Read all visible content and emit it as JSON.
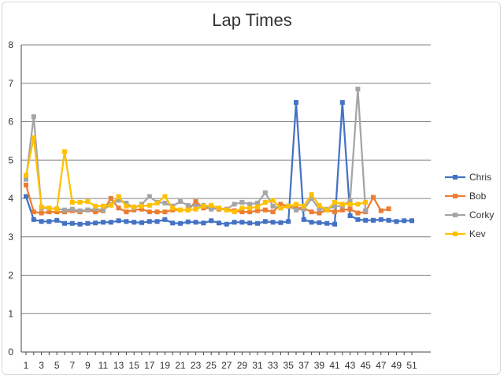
{
  "chart_data": {
    "type": "line",
    "title": "Lap Times",
    "xlabel": "",
    "ylabel": "",
    "ylim": [
      0,
      8
    ],
    "yticks": [
      0,
      1,
      2,
      3,
      4,
      5,
      6,
      7,
      8
    ],
    "xlim": [
      1,
      51
    ],
    "xtick_labels": [
      1,
      3,
      5,
      7,
      9,
      11,
      13,
      15,
      17,
      19,
      21,
      23,
      25,
      27,
      29,
      31,
      33,
      35,
      37,
      39,
      41,
      43,
      45,
      47,
      49,
      51
    ],
    "grid": "horizontal",
    "legend_position": "right",
    "series": [
      {
        "name": "Chris",
        "color": "#4472C4",
        "values": [
          4.05,
          3.45,
          3.4,
          3.4,
          3.43,
          3.35,
          3.35,
          3.33,
          3.35,
          3.36,
          3.38,
          3.38,
          3.42,
          3.4,
          3.38,
          3.37,
          3.4,
          3.4,
          3.45,
          3.36,
          3.35,
          3.39,
          3.38,
          3.36,
          3.42,
          3.36,
          3.33,
          3.38,
          3.38,
          3.36,
          3.35,
          3.4,
          3.38,
          3.37,
          3.4,
          6.5,
          3.45,
          3.38,
          3.37,
          3.35,
          3.33,
          6.5,
          3.55,
          3.45,
          3.43,
          3.43,
          3.45,
          3.43,
          3.4,
          3.42,
          3.42
        ]
      },
      {
        "name": "Bob",
        "color": "#ED7D31",
        "values": [
          4.35,
          3.65,
          3.62,
          3.65,
          3.65,
          3.65,
          3.68,
          3.65,
          3.7,
          3.65,
          3.68,
          4.0,
          3.75,
          3.65,
          3.7,
          3.72,
          3.65,
          3.65,
          3.65,
          3.7,
          3.7,
          3.7,
          3.92,
          3.75,
          3.75,
          3.72,
          3.72,
          3.68,
          3.65,
          3.65,
          3.68,
          3.7,
          3.65,
          3.85,
          3.8,
          3.75,
          3.75,
          3.65,
          3.62,
          3.7,
          3.65,
          3.7,
          3.72,
          3.62,
          3.65,
          4.03,
          3.68,
          3.73
        ]
      },
      {
        "name": "Corky",
        "color": "#A5A5A5",
        "values": [
          4.5,
          6.13,
          3.75,
          3.75,
          3.73,
          3.7,
          3.72,
          3.68,
          3.7,
          3.73,
          3.7,
          3.85,
          3.95,
          3.88,
          3.75,
          3.85,
          4.05,
          3.9,
          3.88,
          3.8,
          3.92,
          3.82,
          3.8,
          3.82,
          3.72,
          3.75,
          3.72,
          3.85,
          3.9,
          3.85,
          3.88,
          4.15,
          3.8,
          3.75,
          3.8,
          3.7,
          3.72,
          4.0,
          3.72,
          3.72,
          3.8,
          3.8,
          3.95,
          6.85,
          3.68
        ]
      },
      {
        "name": "Kev",
        "color": "#FFC000",
        "values": [
          4.6,
          5.58,
          3.78,
          3.75,
          3.72,
          5.22,
          3.9,
          3.9,
          3.92,
          3.8,
          3.8,
          3.82,
          4.05,
          3.8,
          3.78,
          3.8,
          3.82,
          3.88,
          4.05,
          3.75,
          3.7,
          3.7,
          3.72,
          3.8,
          3.82,
          3.75,
          3.7,
          3.65,
          3.75,
          3.75,
          3.78,
          3.9,
          3.95,
          3.75,
          3.8,
          3.85,
          3.8,
          4.1,
          3.82,
          3.7,
          3.9,
          3.85,
          3.85,
          3.85,
          3.9
        ]
      }
    ]
  }
}
